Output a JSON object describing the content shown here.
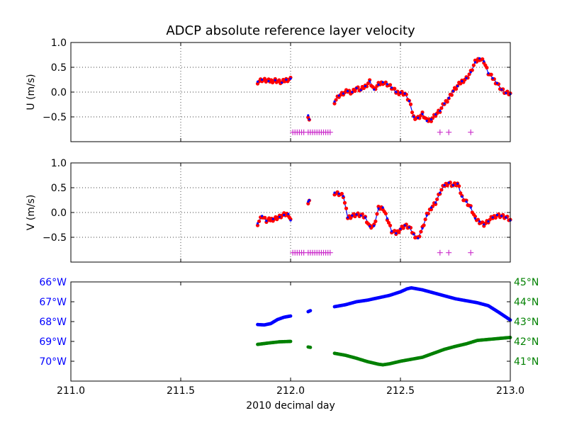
{
  "chart_data": {
    "title": "ADCP absolute reference layer velocity",
    "xlabel": "2010 decimal day",
    "xlim": [
      211.0,
      213.0
    ],
    "xticks": [
      "211.0",
      "211.5",
      "212.0",
      "212.5",
      "213.0"
    ],
    "panels": [
      {
        "type": "line+scatter",
        "ylabel": "U (m/s)",
        "ylim": [
          -1.0,
          1.0
        ],
        "yticks": [
          "1.0",
          "0.5",
          "0.0",
          "−0.5"
        ],
        "grid": true,
        "series": [
          {
            "color": "#0000ff",
            "segments": [
              [
                [
                  211.85,
                  0.21
                ],
                [
                  211.87,
                  0.25
                ],
                [
                  211.9,
                  0.22
                ],
                [
                  211.93,
                  0.24
                ],
                [
                  211.96,
                  0.19
                ],
                [
                  211.98,
                  0.25
                ],
                [
                  212.0,
                  0.27
                ]
              ],
              [
                [
                  212.08,
                  -0.47
                ],
                [
                  212.085,
                  -0.55
                ]
              ],
              [
                [
                  212.2,
                  -0.19
                ],
                [
                  212.22,
                  -0.07
                ],
                [
                  212.24,
                  -0.03
                ],
                [
                  212.26,
                  0.02
                ],
                [
                  212.28,
                  0.0
                ],
                [
                  212.3,
                  0.08
                ],
                [
                  212.32,
                  0.04
                ],
                [
                  212.34,
                  0.12
                ],
                [
                  212.36,
                  0.22
                ],
                [
                  212.38,
                  0.05
                ],
                [
                  212.4,
                  0.15
                ],
                [
                  212.42,
                  0.2
                ],
                [
                  212.44,
                  0.16
                ],
                [
                  212.46,
                  0.09
                ],
                [
                  212.48,
                  0.0
                ],
                [
                  212.5,
                  -0.01
                ],
                [
                  212.52,
                  -0.03
                ],
                [
                  212.54,
                  -0.18
                ],
                [
                  212.56,
                  -0.5
                ],
                [
                  212.58,
                  -0.52
                ],
                [
                  212.6,
                  -0.44
                ],
                [
                  212.62,
                  -0.58
                ],
                [
                  212.64,
                  -0.55
                ],
                [
                  212.66,
                  -0.45
                ],
                [
                  212.68,
                  -0.38
                ],
                [
                  212.7,
                  -0.23
                ],
                [
                  212.72,
                  -0.12
                ],
                [
                  212.74,
                  0.02
                ],
                [
                  212.76,
                  0.12
                ],
                [
                  212.78,
                  0.22
                ],
                [
                  212.8,
                  0.28
                ],
                [
                  212.82,
                  0.4
                ],
                [
                  212.84,
                  0.6
                ],
                [
                  212.86,
                  0.68
                ],
                [
                  212.88,
                  0.62
                ],
                [
                  212.9,
                  0.38
                ],
                [
                  212.92,
                  0.28
                ],
                [
                  212.94,
                  0.18
                ],
                [
                  212.96,
                  0.05
                ],
                [
                  212.98,
                  -0.02
                ],
                [
                  213.0,
                  -0.04
                ]
              ]
            ]
          }
        ],
        "scatter_color": "#ff0000",
        "flag_color": "#cc33cc",
        "flag_y": -0.81,
        "flags_x": [
          212.01,
          212.02,
          212.03,
          212.04,
          212.05,
          212.06,
          212.08,
          212.09,
          212.1,
          212.11,
          212.12,
          212.13,
          212.14,
          212.15,
          212.16,
          212.17,
          212.18,
          212.68,
          212.72,
          212.82
        ]
      },
      {
        "type": "line+scatter",
        "ylabel": "V (m/s)",
        "ylim": [
          -1.0,
          1.0
        ],
        "yticks": [
          "1.0",
          "0.5",
          "0.0",
          "−0.5"
        ],
        "grid": true,
        "series": [
          {
            "color": "#0000ff",
            "segments": [
              [
                [
                  211.85,
                  -0.22
                ],
                [
                  211.87,
                  -0.07
                ],
                [
                  211.89,
                  -0.17
                ],
                [
                  211.92,
                  -0.13
                ],
                [
                  211.95,
                  -0.09
                ],
                [
                  211.97,
                  -0.05
                ],
                [
                  211.99,
                  -0.03
                ],
                [
                  212.0,
                  -0.16
                ]
              ],
              [
                [
                  212.08,
                  0.22
                ],
                [
                  212.085,
                  0.25
                ]
              ],
              [
                [
                  212.2,
                  0.4
                ],
                [
                  212.22,
                  0.38
                ],
                [
                  212.24,
                  0.33
                ],
                [
                  212.26,
                  -0.1
                ],
                [
                  212.28,
                  -0.06
                ],
                [
                  212.3,
                  -0.04
                ],
                [
                  212.32,
                  -0.06
                ],
                [
                  212.34,
                  -0.1
                ],
                [
                  212.36,
                  -0.28
                ],
                [
                  212.38,
                  -0.27
                ],
                [
                  212.4,
                  0.08
                ],
                [
                  212.42,
                  0.1
                ],
                [
                  212.44,
                  -0.12
                ],
                [
                  212.46,
                  -0.38
                ],
                [
                  212.48,
                  -0.42
                ],
                [
                  212.5,
                  -0.33
                ],
                [
                  212.52,
                  -0.26
                ],
                [
                  212.54,
                  -0.3
                ],
                [
                  212.56,
                  -0.44
                ],
                [
                  212.58,
                  -0.52
                ],
                [
                  212.6,
                  -0.32
                ],
                [
                  212.62,
                  -0.06
                ],
                [
                  212.64,
                  0.1
                ],
                [
                  212.66,
                  0.2
                ],
                [
                  212.68,
                  0.4
                ],
                [
                  212.7,
                  0.55
                ],
                [
                  212.72,
                  0.6
                ],
                [
                  212.74,
                  0.55
                ],
                [
                  212.76,
                  0.58
                ],
                [
                  212.78,
                  0.32
                ],
                [
                  212.8,
                  0.22
                ],
                [
                  212.82,
                  0.1
                ],
                [
                  212.84,
                  -0.12
                ],
                [
                  212.86,
                  -0.18
                ],
                [
                  212.88,
                  -0.24
                ],
                [
                  212.9,
                  -0.18
                ],
                [
                  212.92,
                  -0.1
                ],
                [
                  212.94,
                  -0.05
                ],
                [
                  212.96,
                  -0.07
                ],
                [
                  212.98,
                  -0.1
                ],
                [
                  213.0,
                  -0.16
                ]
              ]
            ]
          }
        ],
        "scatter_color": "#ff0000",
        "flag_color": "#cc33cc",
        "flag_y": -0.81,
        "flags_x": [
          212.01,
          212.02,
          212.03,
          212.04,
          212.05,
          212.06,
          212.08,
          212.09,
          212.1,
          212.11,
          212.12,
          212.13,
          212.14,
          212.15,
          212.16,
          212.17,
          212.18,
          212.68,
          212.72,
          212.82
        ]
      },
      {
        "type": "scatter",
        "ylim_left": [
          71.0,
          66.0
        ],
        "ylim_right": [
          40.0,
          45.0
        ],
        "yticks_left": [
          "66°W",
          "67°W",
          "68°W",
          "69°W",
          "70°W"
        ],
        "yticks_right": [
          "45°N",
          "44°N",
          "43°N",
          "42°N",
          "41°N"
        ],
        "grid": false,
        "series": [
          {
            "axis": "left",
            "color": "#0000ff",
            "segments": [
              [
                [
                  211.85,
                  68.15
                ],
                [
                  211.88,
                  68.17
                ],
                [
                  211.91,
                  68.1
                ],
                [
                  211.94,
                  67.9
                ],
                [
                  211.97,
                  67.78
                ],
                [
                  212.0,
                  67.72
                ]
              ],
              [
                [
                  212.08,
                  67.5
                ],
                [
                  212.09,
                  67.45
                ]
              ],
              [
                [
                  212.2,
                  67.25
                ],
                [
                  212.25,
                  67.15
                ],
                [
                  212.3,
                  67.0
                ],
                [
                  212.35,
                  66.92
                ],
                [
                  212.4,
                  66.8
                ],
                [
                  212.45,
                  66.68
                ],
                [
                  212.5,
                  66.5
                ],
                [
                  212.53,
                  66.35
                ],
                [
                  212.55,
                  66.3
                ],
                [
                  212.6,
                  66.4
                ],
                [
                  212.65,
                  66.55
                ],
                [
                  212.7,
                  66.7
                ],
                [
                  212.75,
                  66.85
                ],
                [
                  212.8,
                  66.95
                ],
                [
                  212.85,
                  67.05
                ],
                [
                  212.9,
                  67.2
                ],
                [
                  212.95,
                  67.55
                ],
                [
                  213.0,
                  67.92
                ]
              ]
            ]
          },
          {
            "axis": "right",
            "color": "#008000",
            "segments": [
              [
                [
                  211.85,
                  41.85
                ],
                [
                  211.9,
                  41.92
                ],
                [
                  211.95,
                  41.98
                ],
                [
                  212.0,
                  42.0
                ]
              ],
              [
                [
                  212.08,
                  41.72
                ],
                [
                  212.09,
                  41.7
                ]
              ],
              [
                [
                  212.2,
                  41.4
                ],
                [
                  212.25,
                  41.3
                ],
                [
                  212.3,
                  41.15
                ],
                [
                  212.35,
                  40.98
                ],
                [
                  212.4,
                  40.85
                ],
                [
                  212.42,
                  40.82
                ],
                [
                  212.45,
                  40.87
                ],
                [
                  212.5,
                  41.0
                ],
                [
                  212.55,
                  41.1
                ],
                [
                  212.6,
                  41.2
                ],
                [
                  212.65,
                  41.4
                ],
                [
                  212.7,
                  41.6
                ],
                [
                  212.75,
                  41.75
                ],
                [
                  212.8,
                  41.88
                ],
                [
                  212.85,
                  42.05
                ],
                [
                  212.9,
                  42.1
                ],
                [
                  212.95,
                  42.15
                ],
                [
                  213.0,
                  42.2
                ]
              ]
            ]
          }
        ]
      }
    ]
  }
}
